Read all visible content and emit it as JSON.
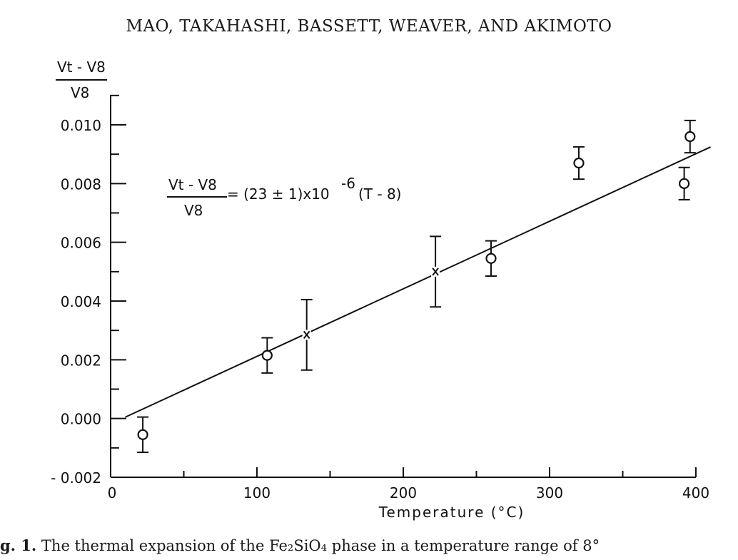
{
  "header": "MAO, TAKAHASHI, BASSETT, WEAVER, AND AKIMOTO",
  "caption": {
    "label": "g. 1.",
    "text": "The thermal expansion of the Fe₂SiO₄ phase in a temperature range of 8°"
  },
  "chart_data": {
    "type": "scatter",
    "xlabel": "Temperature (°C)",
    "ylabel": {
      "numerator": "Vt - V8",
      "denominator": "V8"
    },
    "xlim": [
      0,
      410
    ],
    "ylim": [
      -0.002,
      0.011
    ],
    "x_ticks": [
      "0",
      "100",
      "200",
      "300",
      "400"
    ],
    "y_ticks": [
      "0.010",
      "0.008",
      "0.006",
      "0.004",
      "0.002",
      "0.000",
      "- 0.002"
    ],
    "equation": {
      "lhs_num": "Vt - V8",
      "lhs_den": "V8",
      "rhs": "= (23 ± 1)x10",
      "exp": "-6",
      "rhs_tail": "(T - 8)"
    },
    "fit_line": {
      "slope": 2.3e-05,
      "x0": 8,
      "x_range": [
        10,
        410
      ]
    },
    "series": [
      {
        "marker": "circle",
        "points": [
          {
            "x": 22,
            "y": -0.00055,
            "err": 0.0006
          },
          {
            "x": 107,
            "y": 0.00215,
            "err": 0.0006
          },
          {
            "x": 260,
            "y": 0.00545,
            "err": 0.0006
          },
          {
            "x": 320,
            "y": 0.0087,
            "err": 0.00055
          },
          {
            "x": 392,
            "y": 0.008,
            "err": 0.00055
          },
          {
            "x": 396,
            "y": 0.0096,
            "err": 0.00055
          }
        ]
      },
      {
        "marker": "x",
        "points": [
          {
            "x": 134,
            "y": 0.00285,
            "err": 0.0012
          },
          {
            "x": 222,
            "y": 0.005,
            "err": 0.0012
          }
        ]
      }
    ]
  }
}
